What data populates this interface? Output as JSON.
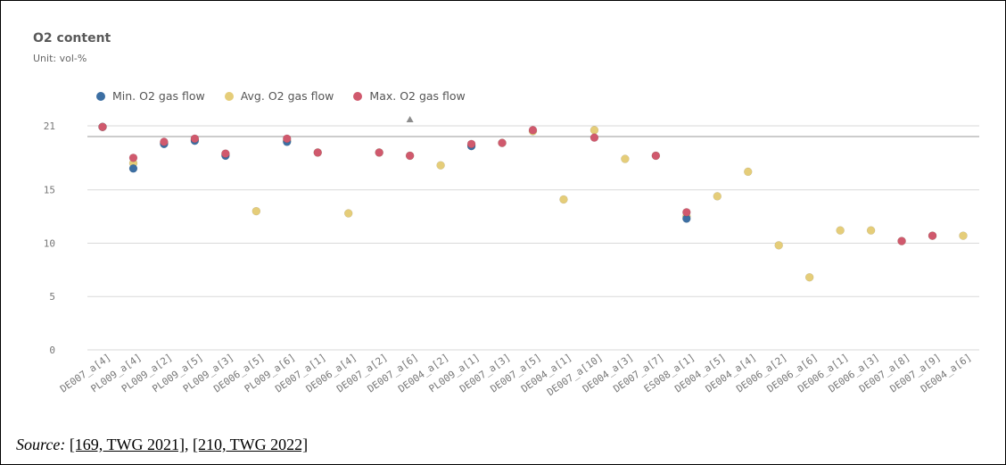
{
  "colors": {
    "min": "#3c6fa3",
    "avg": "#e5cd79",
    "max": "#d0596d",
    "grid": "#d9d9d9",
    "axis_text": "#777777"
  },
  "source": {
    "label": "Source:",
    "refs": [
      "[169, TWG 2021]",
      "[210, TWG 2022]"
    ],
    "separator": ", "
  },
  "chart_data": {
    "type": "scatter",
    "title": "O2 content",
    "subtitle": "Unit: vol-%",
    "xlabel": "",
    "ylabel": "",
    "ylim": [
      0,
      21
    ],
    "yticks": [
      0,
      5,
      10,
      15,
      21
    ],
    "grid": true,
    "legend_position": "top-left",
    "reference_line": 20,
    "marker": {
      "category": "DE007_a[6]",
      "symbol": "triangle"
    },
    "categories": [
      "DE007_a[4]",
      "PL009_a[4]",
      "PL009_a[2]",
      "PL009_a[5]",
      "PL009_a[3]",
      "DE006_a[5]",
      "PL009_a[6]",
      "DE007_a[1]",
      "DE006_a[4]",
      "DE007_a[2]",
      "DE007_a[6]",
      "DE004_a[2]",
      "PL009_a[1]",
      "DE007_a[3]",
      "DE007_a[5]",
      "DE004_a[1]",
      "DE007_a[10]",
      "DE004_a[3]",
      "DE007_a[7]",
      "ES008_a[1]",
      "DE004_a[5]",
      "DE004_a[4]",
      "DE006_a[2]",
      "DE006_a[6]",
      "DE006_a[1]",
      "DE006_a[3]",
      "DE007_a[8]",
      "DE007_a[9]",
      "DE004_a[6]"
    ],
    "series": [
      {
        "name": "Min. O2 gas flow",
        "values": [
          20.9,
          17.0,
          19.3,
          19.6,
          18.2,
          null,
          19.5,
          null,
          null,
          null,
          null,
          null,
          19.1,
          null,
          null,
          null,
          null,
          null,
          null,
          12.3,
          null,
          null,
          null,
          null,
          null,
          null,
          null,
          null,
          null
        ]
      },
      {
        "name": "Avg. O2 gas flow",
        "values": [
          20.9,
          17.5,
          19.4,
          19.7,
          18.3,
          13.0,
          19.6,
          18.5,
          12.8,
          18.5,
          18.2,
          17.3,
          19.2,
          19.4,
          20.5,
          14.1,
          20.6,
          17.9,
          18.2,
          12.5,
          14.4,
          16.7,
          9.8,
          6.8,
          11.2,
          11.2,
          10.2,
          10.7,
          10.7
        ]
      },
      {
        "name": "Max. O2 gas flow",
        "values": [
          20.9,
          18.0,
          19.5,
          19.8,
          18.4,
          null,
          19.8,
          18.5,
          null,
          18.5,
          18.2,
          null,
          19.3,
          19.4,
          20.6,
          null,
          19.9,
          null,
          18.2,
          12.9,
          null,
          null,
          null,
          null,
          null,
          null,
          10.2,
          10.7,
          null
        ]
      }
    ]
  }
}
